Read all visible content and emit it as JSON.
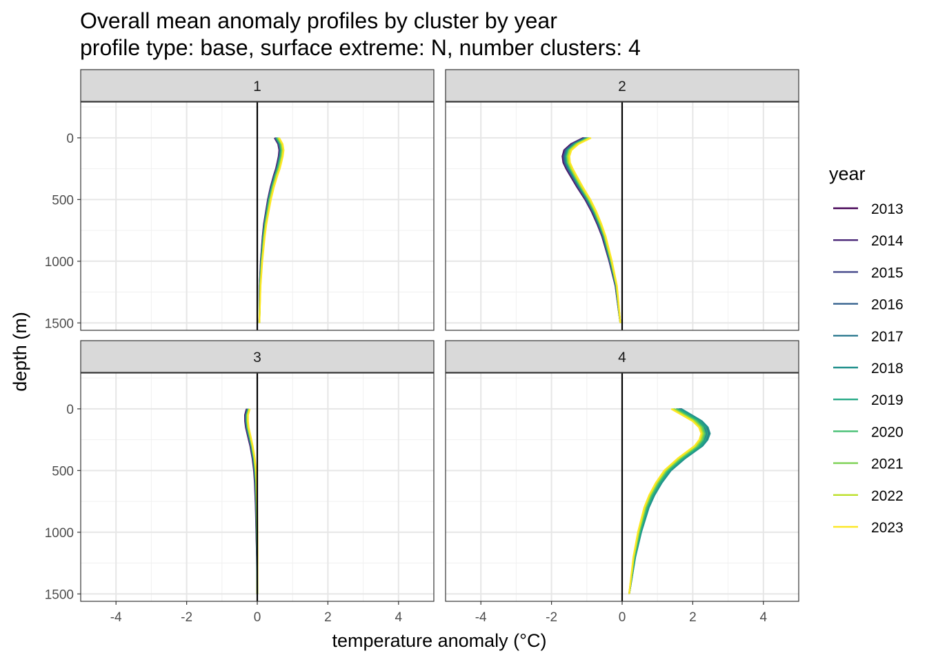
{
  "title": "Overall mean anomaly profiles by cluster by year",
  "subtitle": "profile type: base, surface extreme: N, number clusters: 4",
  "chart_data": {
    "type": "line",
    "xlabel": "temperature anomaly (°C)",
    "ylabel": "depth (m)",
    "xlim": [
      -5,
      5
    ],
    "ylim": [
      1560,
      -290
    ],
    "x_ticks": [
      -4,
      -2,
      0,
      2,
      4
    ],
    "y_ticks": [
      0,
      500,
      1000,
      1500
    ],
    "depths": [
      0,
      50,
      100,
      150,
      200,
      250,
      300,
      400,
      500,
      600,
      700,
      800,
      1000,
      1200,
      1500
    ],
    "grid": true,
    "reference_line_x": 0,
    "legend": {
      "title": "year",
      "position": "right",
      "entries": [
        {
          "label": "2013",
          "color": "#440154"
        },
        {
          "label": "2014",
          "color": "#482576"
        },
        {
          "label": "2015",
          "color": "#414487"
        },
        {
          "label": "2016",
          "color": "#35608D"
        },
        {
          "label": "2017",
          "color": "#2A788E"
        },
        {
          "label": "2018",
          "color": "#21908C"
        },
        {
          "label": "2019",
          "color": "#22A884"
        },
        {
          "label": "2020",
          "color": "#43BF71"
        },
        {
          "label": "2021",
          "color": "#7AD151"
        },
        {
          "label": "2022",
          "color": "#BBDF27"
        },
        {
          "label": "2023",
          "color": "#FDE725"
        }
      ]
    },
    "panels": [
      {
        "label": "1",
        "base": [
          0.55,
          0.65,
          0.68,
          0.66,
          0.62,
          0.58,
          0.52,
          0.42,
          0.34,
          0.28,
          0.22,
          0.18,
          0.12,
          0.08,
          0.06
        ],
        "year_offsets": [
          -0.06,
          -0.05,
          -0.04,
          -0.03,
          -0.02,
          -0.01,
          0.0,
          0.01,
          0.03,
          0.05,
          0.07
        ]
      },
      {
        "label": "2",
        "base": [
          -1.0,
          -1.35,
          -1.55,
          -1.6,
          -1.58,
          -1.5,
          -1.4,
          -1.2,
          -0.98,
          -0.8,
          -0.65,
          -0.52,
          -0.33,
          -0.17,
          -0.05
        ],
        "year_offsets": [
          -0.1,
          -0.08,
          -0.06,
          -0.04,
          -0.02,
          0.0,
          0.02,
          0.04,
          0.06,
          0.08,
          0.12
        ]
      },
      {
        "label": "3",
        "base": [
          -0.25,
          -0.3,
          -0.3,
          -0.28,
          -0.24,
          -0.2,
          -0.16,
          -0.1,
          -0.06,
          -0.04,
          -0.03,
          -0.02,
          -0.01,
          0.0,
          0.0
        ],
        "year_offsets": [
          -0.05,
          -0.04,
          -0.03,
          -0.02,
          -0.01,
          0.0,
          0.0,
          0.01,
          0.02,
          0.03,
          0.04
        ]
      },
      {
        "label": "4",
        "base": [
          1.55,
          1.85,
          2.15,
          2.32,
          2.38,
          2.32,
          2.18,
          1.7,
          1.3,
          1.05,
          0.85,
          0.7,
          0.5,
          0.35,
          0.2
        ],
        "year_offsets": [
          0.06,
          0.1,
          0.08,
          0.04,
          0.0,
          0.12,
          0.05,
          -0.03,
          -0.08,
          -0.12,
          -0.16
        ]
      }
    ]
  }
}
